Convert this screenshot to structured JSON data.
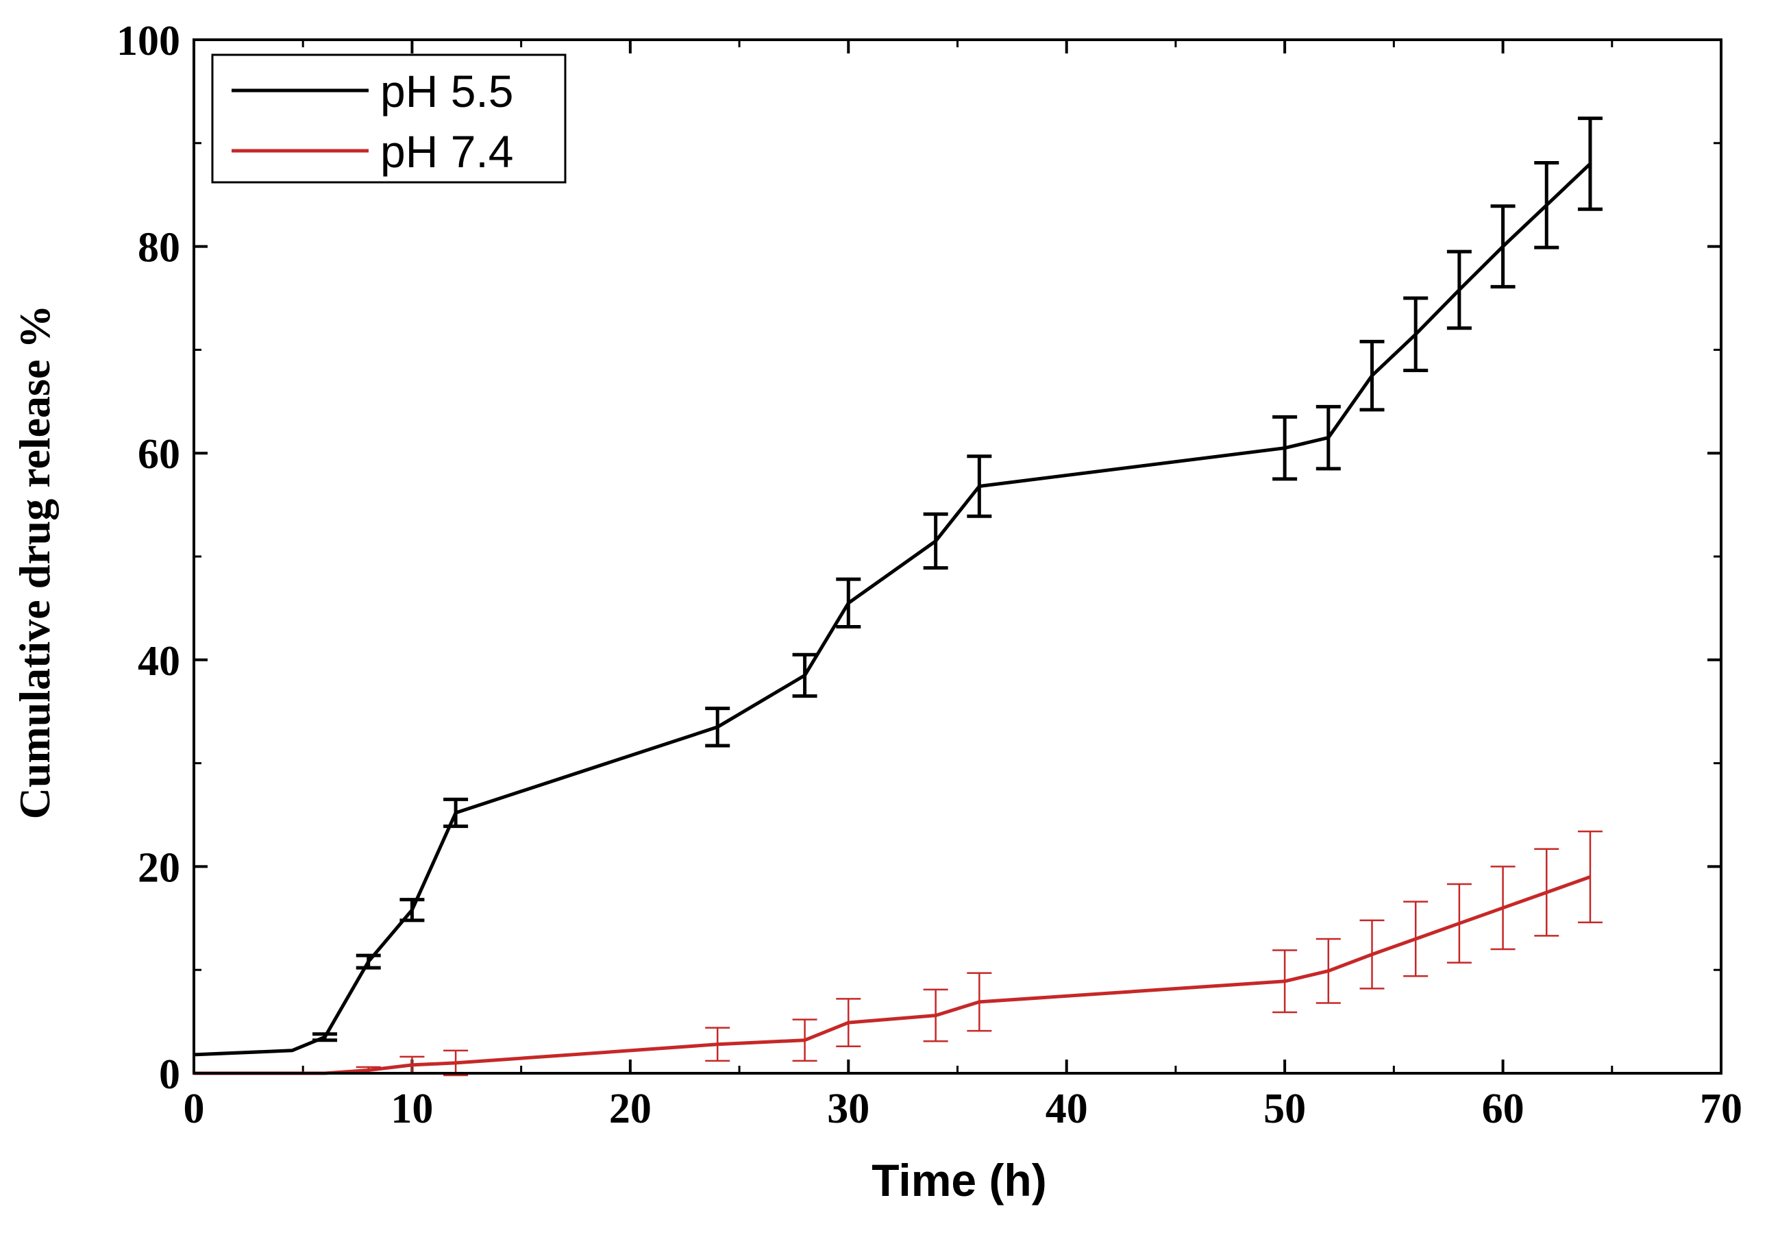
{
  "chart_data": {
    "type": "line",
    "title": "",
    "xlabel": "Time (h)",
    "ylabel": "Cumulative drug release %",
    "xlim": [
      0,
      70
    ],
    "ylim": [
      0,
      100
    ],
    "xticks": [
      0,
      10,
      20,
      30,
      40,
      50,
      60,
      70
    ],
    "yticks": [
      0,
      20,
      40,
      60,
      80,
      100
    ],
    "grid": false,
    "legend_position": "top-left",
    "series": [
      {
        "name": "pH 5.5",
        "color": "#000000",
        "x": [
          0,
          4.5,
          6,
          8,
          10,
          12,
          24,
          28,
          30,
          34,
          36,
          50,
          52,
          54,
          56,
          58,
          60,
          62,
          64
        ],
        "y": [
          1.8,
          2.2,
          3.5,
          10.8,
          15.8,
          25.2,
          33.5,
          38.5,
          45.5,
          51.5,
          56.8,
          60.5,
          61.5,
          67.5,
          71.5,
          75.8,
          80,
          84,
          88
        ],
        "err": [
          0,
          0,
          0.3,
          0.6,
          1,
          1.3,
          1.8,
          2,
          2.3,
          2.6,
          2.9,
          3,
          3,
          3.3,
          3.5,
          3.7,
          3.9,
          4.1,
          4.4
        ]
      },
      {
        "name": "pH 7.4",
        "color": "#c62828",
        "x": [
          0,
          6,
          8,
          10,
          12,
          24,
          28,
          30,
          34,
          36,
          50,
          52,
          54,
          56,
          58,
          60,
          62,
          64
        ],
        "y": [
          0,
          0,
          0.3,
          0.8,
          1,
          2.8,
          3.2,
          4.9,
          5.6,
          6.9,
          8.9,
          9.9,
          11.5,
          13,
          14.5,
          16,
          17.5,
          19
        ],
        "err": [
          0,
          0,
          0.3,
          0.8,
          1.2,
          1.6,
          2,
          2.3,
          2.5,
          2.8,
          3,
          3.1,
          3.3,
          3.6,
          3.8,
          4,
          4.2,
          4.4
        ]
      }
    ]
  }
}
